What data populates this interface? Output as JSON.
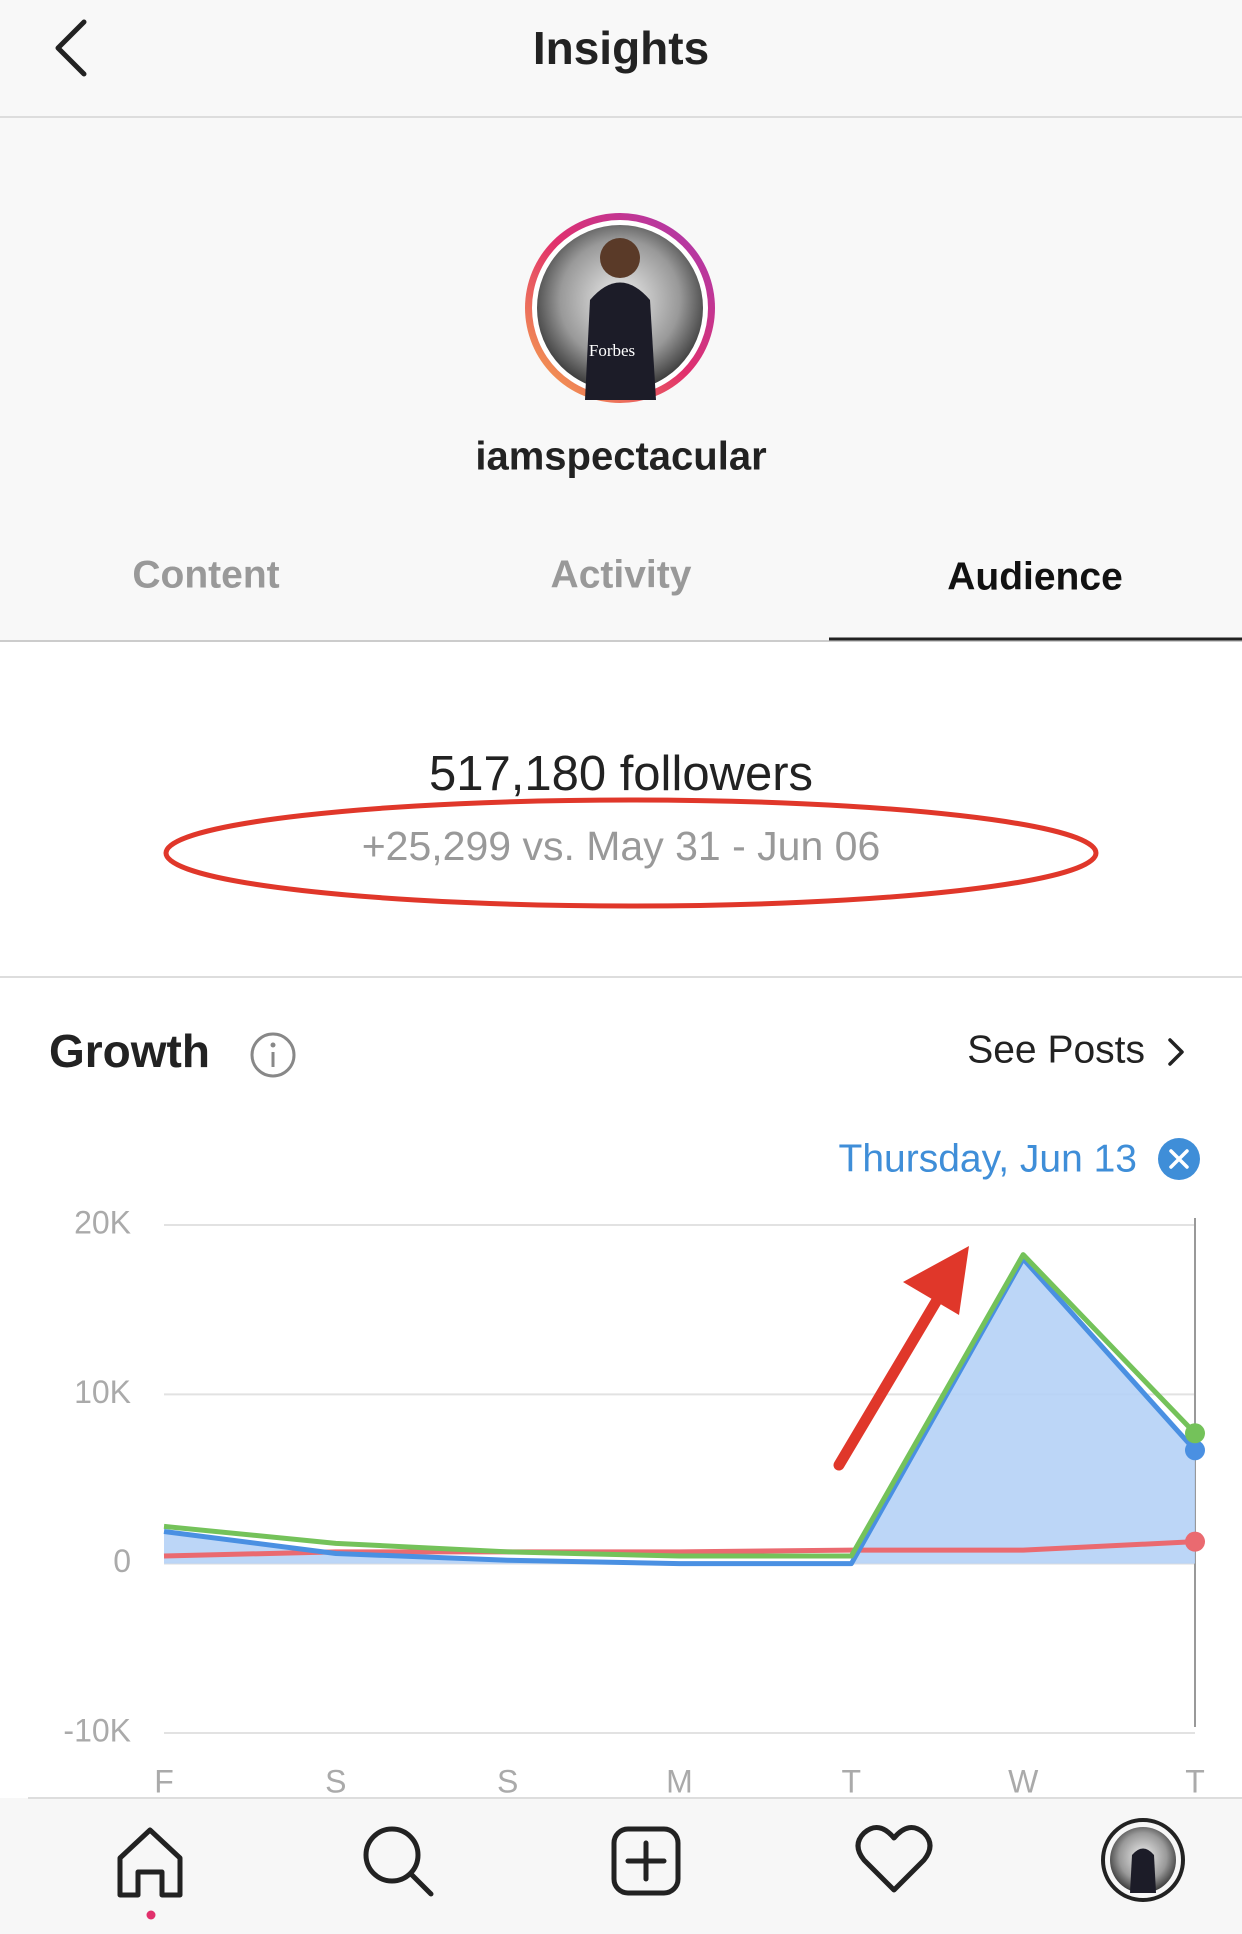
{
  "header": {
    "title": "Insights"
  },
  "profile": {
    "username": "iamspectacular",
    "avatar_text": "Forbes"
  },
  "tabs": [
    "Content",
    "Activity",
    "Audience"
  ],
  "summary": {
    "followers": "517,180 followers",
    "change": "+25,299 vs. May 31 - Jun 06"
  },
  "growth": {
    "title": "Growth",
    "see_posts": "See Posts"
  },
  "chart_data": {
    "type": "line",
    "annotation": "Thursday, Jun 13",
    "categories": [
      "F",
      "S",
      "S",
      "M",
      "T",
      "W",
      "T"
    ],
    "series": [
      {
        "color": "#4a90e2",
        "values": [
          1900,
          600,
          200,
          0,
          0,
          18000,
          6700
        ]
      },
      {
        "color": "#74c25a",
        "values": [
          2200,
          1200,
          700,
          450,
          450,
          18250,
          7700
        ]
      },
      {
        "color": "#ea6a70",
        "values": [
          450,
          700,
          700,
          700,
          800,
          800,
          1300
        ]
      }
    ],
    "area_color": "#b5d2f6",
    "ylim": [
      -10000,
      20000
    ],
    "yticks": [
      {
        "value": -10000,
        "label": "-10K"
      },
      {
        "value": 0,
        "label": "0"
      },
      {
        "value": 10000,
        "label": "10K"
      },
      {
        "value": 20000,
        "label": "20K"
      }
    ],
    "grid": true
  }
}
